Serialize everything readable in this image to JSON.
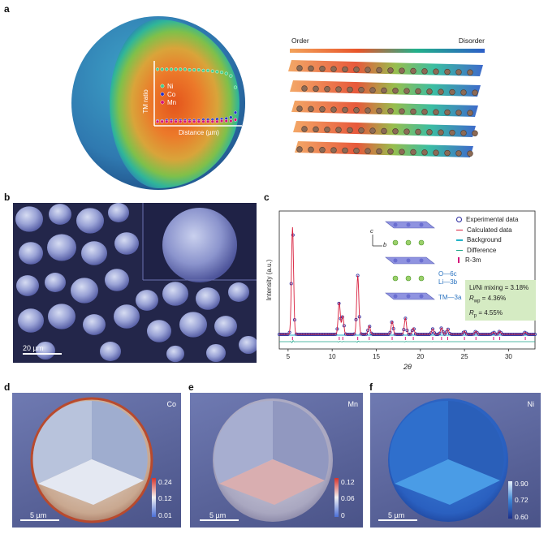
{
  "panels": {
    "a": {
      "label": "a",
      "axis_y": "TM ratio",
      "axis_x": "Distance (µm)",
      "legend": [
        {
          "name": "Ni",
          "color": "#3fd08c"
        },
        {
          "name": "Co",
          "color": "#2230c8"
        },
        {
          "name": "Mn",
          "color": "#d4127a"
        }
      ],
      "gradient_left": "Order",
      "gradient_right": "Disorder",
      "gradient_left_color": "#f3a25a",
      "gradient_right_color": "#2d5fc8"
    },
    "b": {
      "label": "b",
      "scalebar": "20 µm"
    },
    "c": {
      "label": "c",
      "ylabel": "Intensity (a.u.)",
      "xlabel": "2θ",
      "legend": [
        {
          "name": "Experimental data",
          "color": "#2a2aa0"
        },
        {
          "name": "Calculated data",
          "color": "#d81e3c"
        },
        {
          "name": "Background",
          "color": "#22b3c8"
        },
        {
          "name": "Difference",
          "color": "#1fa58a"
        },
        {
          "name": "R-3m",
          "color": "#d4127a"
        }
      ],
      "crystal_labels": [
        "O—6c",
        "Li—3b",
        "TM—3a"
      ],
      "axis_c": "c",
      "axis_b": "b",
      "fit_box": [
        "Li/Ni mixing = 3.18%",
        "R",
        "wp",
        " = 4.36%",
        "R",
        "p",
        " = 4.55%"
      ]
    },
    "d": {
      "label": "d",
      "element": "Co",
      "cbar_ticks": [
        "0.24",
        "0.12",
        "0.01"
      ],
      "scalebar": "5 µm"
    },
    "e": {
      "label": "e",
      "element": "Mn",
      "cbar_ticks": [
        "0.12",
        "0.06",
        "0"
      ],
      "scalebar": "5 µm"
    },
    "f": {
      "label": "f",
      "element": "Ni",
      "cbar_ticks": [
        "0.90",
        "0.72",
        "0.60"
      ],
      "scalebar": "5 µm"
    }
  },
  "chart_data": [
    {
      "type": "line",
      "title": "",
      "xlabel": "Distance (µm)",
      "ylabel": "TM ratio",
      "series": [
        {
          "name": "Ni",
          "values": [
            0.9,
            0.9,
            0.9,
            0.9,
            0.9,
            0.9,
            0.9,
            0.89,
            0.89,
            0.89,
            0.88,
            0.88,
            0.87,
            0.86,
            0.85,
            0.83,
            0.79,
            0.6
          ]
        },
        {
          "name": "Co",
          "values": [
            0.04,
            0.04,
            0.05,
            0.05,
            0.05,
            0.05,
            0.05,
            0.05,
            0.05,
            0.05,
            0.06,
            0.06,
            0.06,
            0.07,
            0.07,
            0.08,
            0.1,
            0.18
          ]
        },
        {
          "name": "Mn",
          "values": [
            0.03,
            0.03,
            0.03,
            0.03,
            0.03,
            0.03,
            0.03,
            0.03,
            0.03,
            0.03,
            0.03,
            0.03,
            0.03,
            0.03,
            0.04,
            0.04,
            0.04,
            0.06
          ]
        }
      ]
    },
    {
      "type": "line",
      "title": "",
      "xlabel": "2θ",
      "ylabel": "Intensity (a.u.)",
      "xlim": [
        4,
        33
      ],
      "x_ticks": [
        5,
        10,
        15,
        20,
        25,
        30
      ],
      "peaks": [
        {
          "x": 5.5,
          "height": 1.0
        },
        {
          "x": 10.8,
          "height": 0.3
        },
        {
          "x": 11.2,
          "height": 0.17
        },
        {
          "x": 12.9,
          "height": 0.55
        },
        {
          "x": 14.2,
          "height": 0.08
        },
        {
          "x": 16.8,
          "height": 0.12
        },
        {
          "x": 18.3,
          "height": 0.15
        },
        {
          "x": 19.2,
          "height": 0.06
        },
        {
          "x": 21.4,
          "height": 0.05
        },
        {
          "x": 22.4,
          "height": 0.06
        },
        {
          "x": 23.1,
          "height": 0.05
        },
        {
          "x": 25.0,
          "height": 0.03
        },
        {
          "x": 26.3,
          "height": 0.03
        },
        {
          "x": 28.3,
          "height": 0.02
        },
        {
          "x": 29.0,
          "height": 0.03
        },
        {
          "x": 31.9,
          "height": 0.02
        }
      ]
    }
  ]
}
